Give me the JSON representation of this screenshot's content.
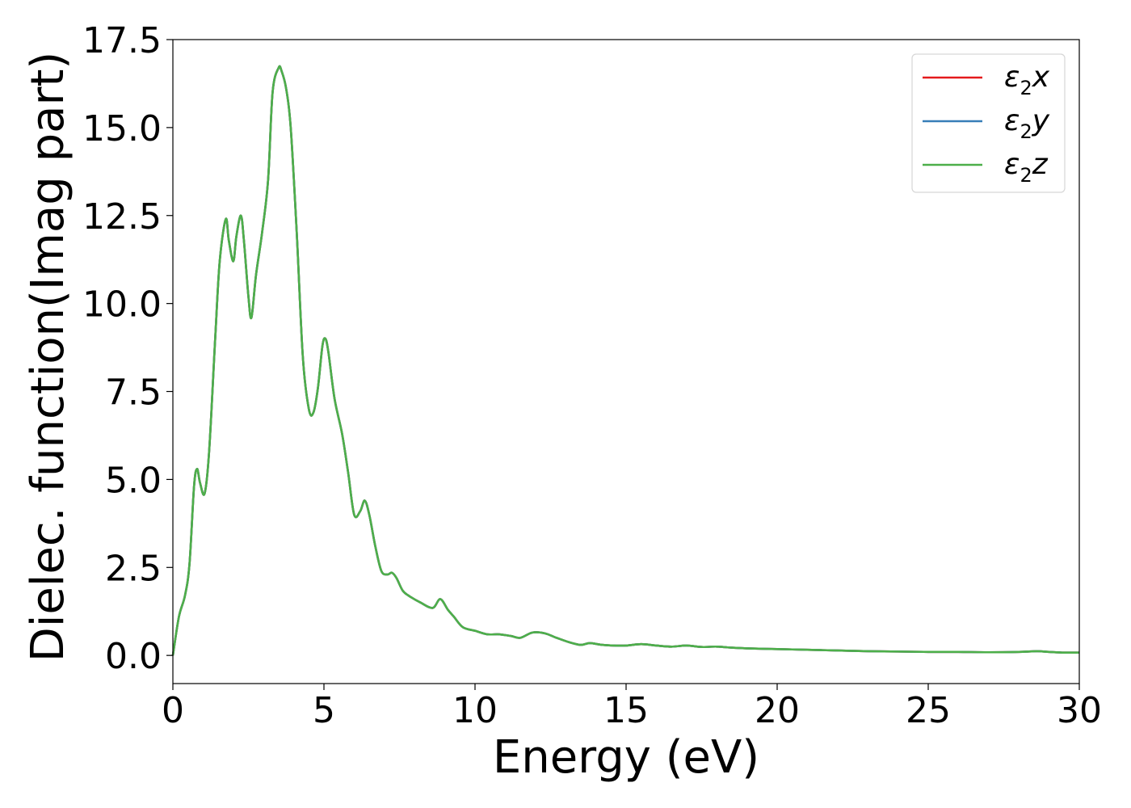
{
  "chart_data": {
    "type": "line",
    "xlabel": "Energy (eV)",
    "ylabel": "Dielec. function(Imag part)",
    "xlim": [
      0,
      30
    ],
    "ylim": [
      -0.8,
      17.5
    ],
    "xticks": [
      0,
      5,
      10,
      15,
      20,
      25,
      30
    ],
    "xtick_labels": [
      "0",
      "5",
      "10",
      "15",
      "20",
      "25",
      "30"
    ],
    "yticks": [
      0.0,
      2.5,
      5.0,
      7.5,
      10.0,
      12.5,
      15.0,
      17.5
    ],
    "ytick_labels": [
      "0.0",
      "2.5",
      "5.0",
      "7.5",
      "10.0",
      "12.5",
      "15.0",
      "17.5"
    ],
    "grid": false,
    "legend_position": "top-right",
    "x": [
      0,
      0.2,
      0.4,
      0.55,
      0.7,
      0.8,
      0.9,
      1.05,
      1.2,
      1.4,
      1.55,
      1.75,
      1.85,
      2.0,
      2.1,
      2.25,
      2.35,
      2.5,
      2.6,
      2.75,
      2.95,
      3.15,
      3.3,
      3.5,
      3.6,
      3.75,
      3.9,
      4.1,
      4.3,
      4.5,
      4.65,
      4.8,
      4.95,
      5.05,
      5.15,
      5.35,
      5.6,
      5.8,
      6.0,
      6.2,
      6.35,
      6.5,
      6.7,
      6.9,
      7.1,
      7.25,
      7.4,
      7.6,
      7.8,
      8.2,
      8.6,
      8.85,
      9.1,
      9.3,
      9.6,
      10.0,
      10.4,
      10.8,
      11.2,
      11.5,
      11.9,
      12.3,
      12.7,
      13.1,
      13.5,
      13.8,
      14.2,
      14.6,
      15.0,
      15.5,
      16.0,
      16.5,
      17.0,
      17.5,
      18.0,
      18.5,
      19.0,
      20.0,
      21.0,
      22.0,
      23.0,
      24.0,
      25.0,
      26.0,
      27.0,
      28.0,
      28.6,
      29.0,
      29.5,
      30.0
    ],
    "series": [
      {
        "name": "x",
        "color": "#e41a1c",
        "values": [
          0.0,
          1.1,
          1.7,
          2.6,
          4.8,
          5.3,
          4.9,
          4.6,
          5.8,
          9.0,
          11.2,
          12.4,
          11.8,
          11.2,
          11.9,
          12.5,
          11.8,
          10.2,
          9.6,
          10.8,
          12.0,
          13.5,
          16.0,
          16.7,
          16.6,
          16.1,
          15.0,
          12.0,
          8.5,
          7.0,
          6.9,
          7.6,
          8.8,
          9.0,
          8.6,
          7.3,
          6.3,
          5.2,
          4.0,
          4.1,
          4.4,
          4.0,
          3.1,
          2.4,
          2.3,
          2.35,
          2.2,
          1.85,
          1.7,
          1.5,
          1.35,
          1.6,
          1.3,
          1.1,
          0.8,
          0.7,
          0.6,
          0.6,
          0.55,
          0.5,
          0.65,
          0.63,
          0.5,
          0.38,
          0.3,
          0.35,
          0.3,
          0.28,
          0.28,
          0.32,
          0.28,
          0.25,
          0.28,
          0.24,
          0.25,
          0.22,
          0.2,
          0.18,
          0.16,
          0.14,
          0.12,
          0.11,
          0.1,
          0.1,
          0.09,
          0.1,
          0.12,
          0.1,
          0.08,
          0.08
        ]
      },
      {
        "name": "y",
        "color": "#377eb8",
        "values": [
          0.0,
          1.1,
          1.7,
          2.6,
          4.8,
          5.3,
          4.9,
          4.6,
          5.8,
          9.0,
          11.2,
          12.4,
          11.8,
          11.2,
          11.9,
          12.5,
          11.8,
          10.2,
          9.6,
          10.8,
          12.0,
          13.5,
          16.0,
          16.7,
          16.6,
          16.1,
          15.0,
          12.0,
          8.5,
          7.0,
          6.9,
          7.6,
          8.8,
          9.0,
          8.6,
          7.3,
          6.3,
          5.2,
          4.0,
          4.1,
          4.4,
          4.0,
          3.1,
          2.4,
          2.3,
          2.35,
          2.2,
          1.85,
          1.7,
          1.5,
          1.35,
          1.6,
          1.3,
          1.1,
          0.8,
          0.7,
          0.6,
          0.6,
          0.55,
          0.5,
          0.65,
          0.63,
          0.5,
          0.38,
          0.3,
          0.35,
          0.3,
          0.28,
          0.28,
          0.32,
          0.28,
          0.25,
          0.28,
          0.24,
          0.25,
          0.22,
          0.2,
          0.18,
          0.16,
          0.14,
          0.12,
          0.11,
          0.1,
          0.1,
          0.09,
          0.1,
          0.12,
          0.1,
          0.08,
          0.08
        ]
      },
      {
        "name": "z",
        "color": "#4daf4a",
        "values": [
          0.0,
          1.1,
          1.7,
          2.6,
          4.8,
          5.3,
          4.9,
          4.6,
          5.8,
          9.0,
          11.2,
          12.4,
          11.8,
          11.2,
          11.9,
          12.5,
          11.8,
          10.2,
          9.6,
          10.8,
          12.0,
          13.5,
          16.0,
          16.7,
          16.6,
          16.1,
          15.0,
          12.0,
          8.5,
          7.0,
          6.9,
          7.6,
          8.8,
          9.0,
          8.6,
          7.3,
          6.3,
          5.2,
          4.0,
          4.1,
          4.4,
          4.0,
          3.1,
          2.4,
          2.3,
          2.35,
          2.2,
          1.85,
          1.7,
          1.5,
          1.35,
          1.6,
          1.3,
          1.1,
          0.8,
          0.7,
          0.6,
          0.6,
          0.55,
          0.5,
          0.65,
          0.63,
          0.5,
          0.38,
          0.3,
          0.35,
          0.3,
          0.28,
          0.28,
          0.32,
          0.28,
          0.25,
          0.28,
          0.24,
          0.25,
          0.22,
          0.2,
          0.18,
          0.16,
          0.14,
          0.12,
          0.11,
          0.1,
          0.1,
          0.09,
          0.1,
          0.12,
          0.1,
          0.08,
          0.08
        ]
      }
    ],
    "legend": [
      {
        "symbol": "ε",
        "sub": "2",
        "suffix": "x",
        "color": "#e41a1c"
      },
      {
        "symbol": "ε",
        "sub": "2",
        "suffix": "y",
        "color": "#377eb8"
      },
      {
        "symbol": "ε",
        "sub": "2",
        "suffix": "z",
        "color": "#4daf4a"
      }
    ]
  }
}
